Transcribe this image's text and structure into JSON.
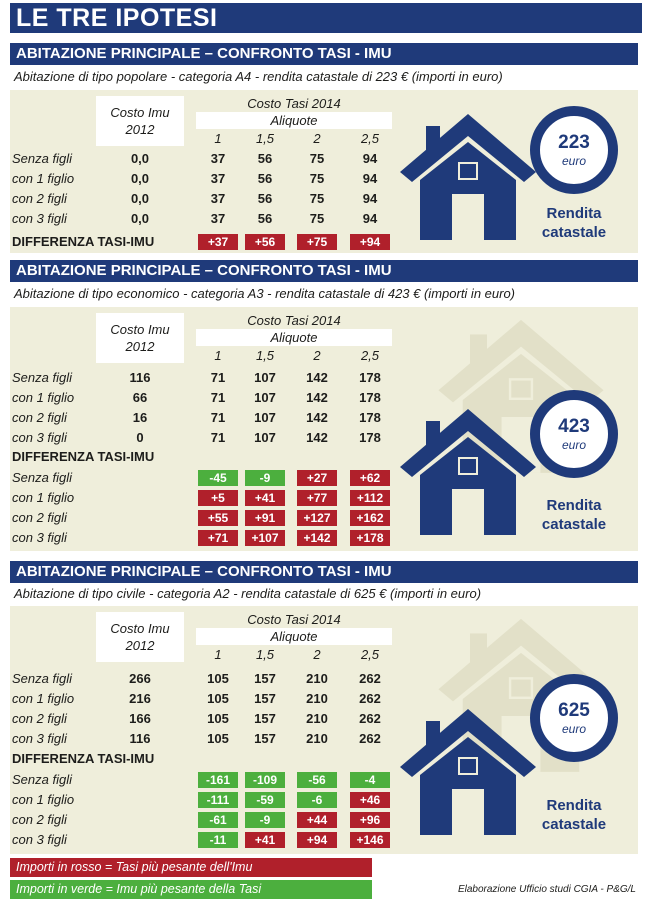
{
  "title": "LE TRE IPOTESI",
  "colors": {
    "navy": "#1f3a7a",
    "panel": "#efeedb",
    "red": "#b0202b",
    "green": "#4caf3e",
    "ghost_house": "#e2e0c8"
  },
  "common": {
    "costo_imu": [
      "Costo Imu",
      "2012"
    ],
    "costo_tasi": "Costo Tasi 2014",
    "aliquote": "Aliquote",
    "aliquote_values": [
      "1",
      "1,5",
      "2",
      "2,5"
    ],
    "row_labels": [
      "Senza figli",
      "con 1 figlio",
      "con 2 figli",
      "con 3 figli"
    ],
    "differenza": "DIFFERENZA TASI-IMU",
    "euro": "euro",
    "rendita_line1": "Rendita",
    "rendita_line2": "catastale"
  },
  "sections": [
    {
      "heading": "ABITAZIONE PRINCIPALE – CONFRONTO TASI - IMU",
      "subtitle": "Abitazione di tipo popolare - categoria A4 - rendita catastale di 223 € (importi in euro)",
      "rendita": "223",
      "imu": [
        "0,0",
        "0,0",
        "0,0",
        "0,0"
      ],
      "tasi": [
        [
          "37",
          "56",
          "75",
          "94"
        ],
        [
          "37",
          "56",
          "75",
          "94"
        ],
        [
          "37",
          "56",
          "75",
          "94"
        ],
        [
          "37",
          "56",
          "75",
          "94"
        ]
      ],
      "diff": [
        [
          "+37",
          "+56",
          "+75",
          "+94"
        ]
      ],
      "diff_colors": [
        [
          "red",
          "red",
          "red",
          "red"
        ]
      ]
    },
    {
      "heading": "ABITAZIONE PRINCIPALE – CONFRONTO TASI - IMU",
      "subtitle": "Abitazione di tipo economico - categoria A3 - rendita catastale di 423 € (importi in euro)",
      "rendita": "423",
      "imu": [
        "116",
        "66",
        "16",
        "0"
      ],
      "tasi": [
        [
          "71",
          "107",
          "142",
          "178"
        ],
        [
          "71",
          "107",
          "142",
          "178"
        ],
        [
          "71",
          "107",
          "142",
          "178"
        ],
        [
          "71",
          "107",
          "142",
          "178"
        ]
      ],
      "diff": [
        [
          "-45",
          "-9",
          "+27",
          "+62"
        ],
        [
          "+5",
          "+41",
          "+77",
          "+112"
        ],
        [
          "+55",
          "+91",
          "+127",
          "+162"
        ],
        [
          "+71",
          "+107",
          "+142",
          "+178"
        ]
      ],
      "diff_colors": [
        [
          "green",
          "green",
          "red",
          "red"
        ],
        [
          "red",
          "red",
          "red",
          "red"
        ],
        [
          "red",
          "red",
          "red",
          "red"
        ],
        [
          "red",
          "red",
          "red",
          "red"
        ]
      ]
    },
    {
      "heading": "ABITAZIONE PRINCIPALE – CONFRONTO TASI - IMU",
      "subtitle": "Abitazione di tipo civile - categoria A2 - rendita catastale di 625 € (importi in euro)",
      "rendita": "625",
      "imu": [
        "266",
        "216",
        "166",
        "116"
      ],
      "tasi": [
        [
          "105",
          "157",
          "210",
          "262"
        ],
        [
          "105",
          "157",
          "210",
          "262"
        ],
        [
          "105",
          "157",
          "210",
          "262"
        ],
        [
          "105",
          "157",
          "210",
          "262"
        ]
      ],
      "diff": [
        [
          "-161",
          "-109",
          "-56",
          "-4"
        ],
        [
          "-111",
          "-59",
          "-6",
          "+46"
        ],
        [
          "-61",
          "-9",
          "+44",
          "+96"
        ],
        [
          "-11",
          "+41",
          "+94",
          "+146"
        ]
      ],
      "diff_colors": [
        [
          "green",
          "green",
          "green",
          "green"
        ],
        [
          "green",
          "green",
          "green",
          "red"
        ],
        [
          "green",
          "green",
          "red",
          "red"
        ],
        [
          "green",
          "red",
          "red",
          "red"
        ]
      ]
    }
  ],
  "legend": {
    "red": "Importi in rosso = Tasi più pesante dell'Imu",
    "green": "Importi in verde = Imu più pesante della Tasi"
  },
  "credit": "Elaborazione Ufficio studi CGIA - P&G/L"
}
